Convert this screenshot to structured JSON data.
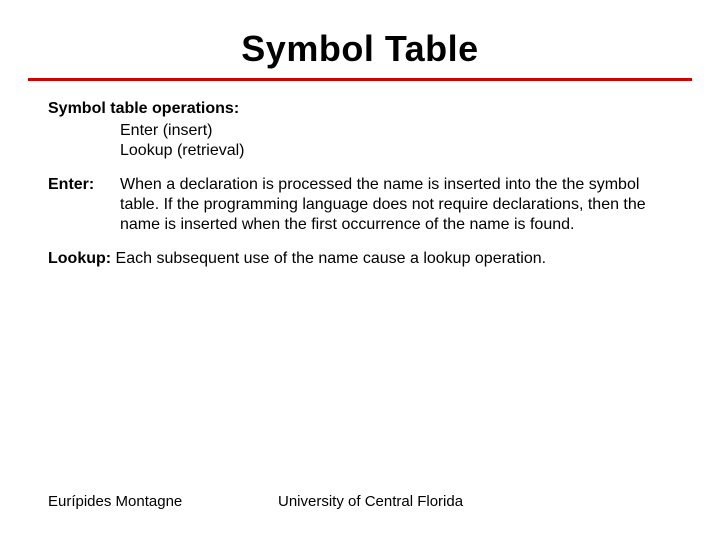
{
  "colors": {
    "rule": "#cc0000",
    "text": "#000000",
    "background": "#ffffff"
  },
  "title": "Symbol Table",
  "operations": {
    "heading": "Symbol table operations:",
    "items": [
      "Enter (insert)",
      "Lookup (retrieval)"
    ]
  },
  "enter": {
    "label": "Enter:",
    "text": "When a declaration is processed the name is inserted into the the symbol table. If the programming language does not require declarations, then the name is inserted when the first occurrence of the name is found."
  },
  "lookup": {
    "label": "Lookup:",
    "text": "Each subsequent  use of the name cause a lookup operation."
  },
  "footer": {
    "author": "Eurípides Montagne",
    "affiliation": "University of Central Florida"
  }
}
